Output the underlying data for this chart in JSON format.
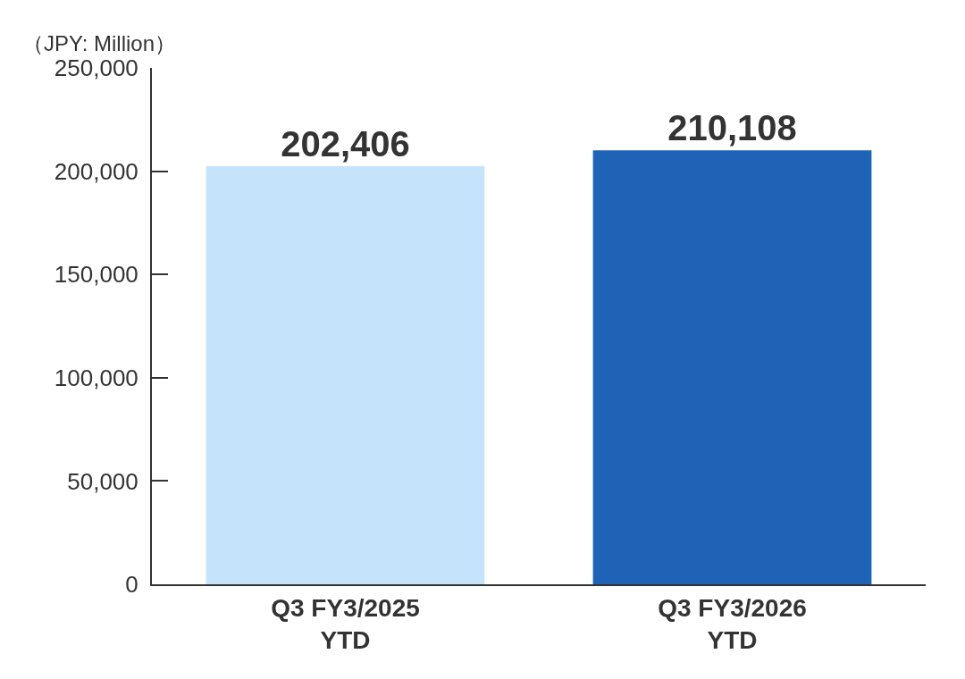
{
  "chart_data": {
    "type": "bar",
    "ylabel": "（JPY: Million）",
    "categories": [
      "Q3 FY3/2025\nYTD",
      "Q3 FY3/2026\nYTD"
    ],
    "values": [
      202406,
      210108
    ],
    "colors": [
      "#c5e4fc",
      "#1e63b6"
    ],
    "ylim": [
      0,
      250000
    ],
    "yticks": [
      {
        "value": 0,
        "label": "0"
      },
      {
        "value": 50000,
        "label": "50,000"
      },
      {
        "value": 100000,
        "label": "100,000"
      },
      {
        "value": 150000,
        "label": "150,000"
      },
      {
        "value": 200000,
        "label": "200,000"
      },
      {
        "value": 250000,
        "label": "250,000"
      }
    ],
    "value_labels": [
      "202,406",
      "210,108"
    ]
  }
}
